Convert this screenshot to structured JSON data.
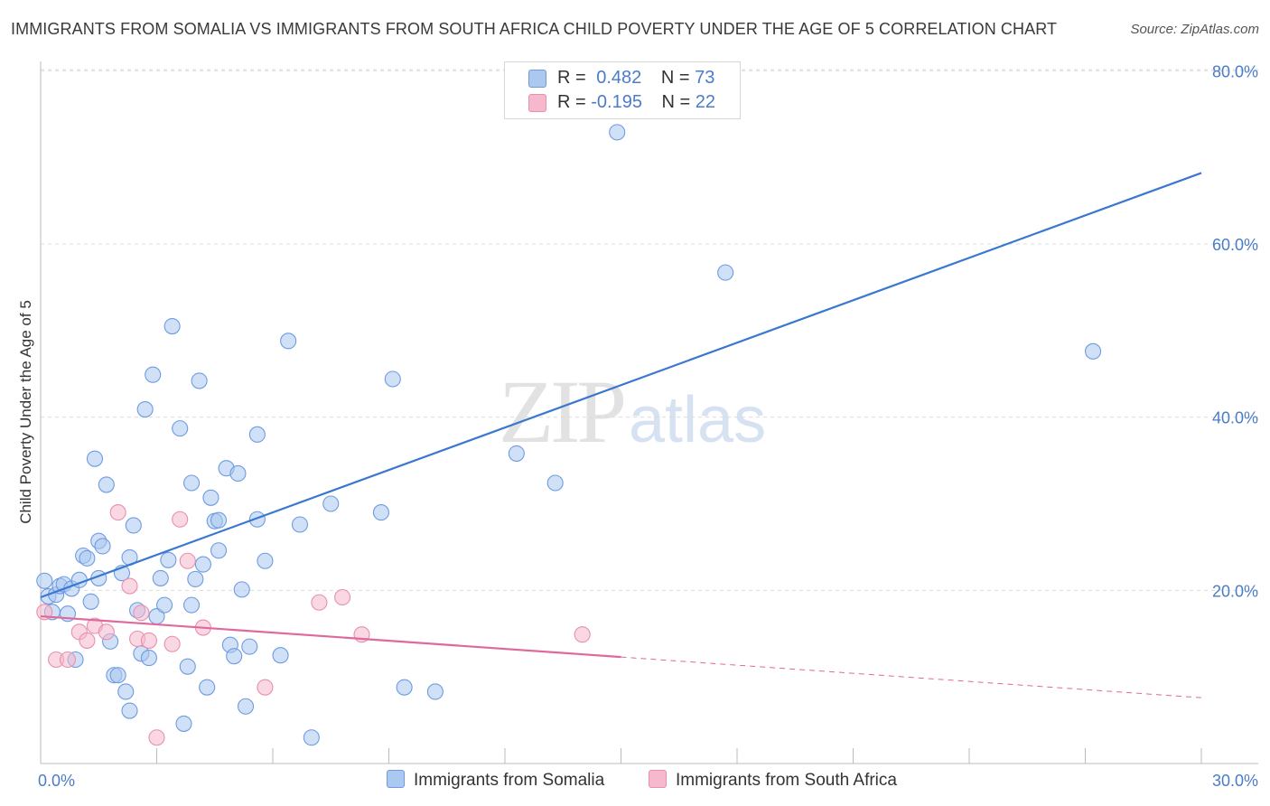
{
  "header": {
    "title": "IMMIGRANTS FROM SOMALIA VS IMMIGRANTS FROM SOUTH AFRICA CHILD POVERTY UNDER THE AGE OF 5 CORRELATION CHART",
    "source": "Source: ZipAtlas.com"
  },
  "watermark": {
    "zip": "ZIP",
    "atlas": "atlas"
  },
  "legend": {
    "rows": [
      {
        "r_label": "R = ",
        "r_value": "0.482",
        "n_label": "N = ",
        "n_value": "73",
        "color": "#aac8f0"
      },
      {
        "r_label": "R = ",
        "r_value": "-0.195",
        "n_label": "N = ",
        "n_value": "22",
        "color": "#f5b8cc"
      }
    ]
  },
  "chart_data": {
    "type": "scatter",
    "title": "IMMIGRANTS FROM SOMALIA VS IMMIGRANTS FROM SOUTH AFRICA CHILD POVERTY UNDER THE AGE OF 5 CORRELATION CHART",
    "xlabel": "",
    "ylabel": "Child Poverty Under the Age of 5",
    "xlim": [
      0,
      30
    ],
    "ylim": [
      0,
      83
    ],
    "x_tick_labels": [
      "0.0%",
      "30.0%"
    ],
    "y_ticks": [
      20,
      40,
      60,
      80
    ],
    "y_tick_labels": [
      "20.0%",
      "40.0%",
      "60.0%",
      "80.0%"
    ],
    "grid": true,
    "series": [
      {
        "name": "Immigrants from Somalia",
        "color": "#aac8f0",
        "stroke": "#6e9be0",
        "trend_color": "#3a78d0",
        "R": 0.482,
        "N": 73,
        "trend": {
          "x": [
            0,
            30
          ],
          "y": [
            19.2,
            68.2
          ]
        },
        "points": [
          [
            0.1,
            21.1
          ],
          [
            0.2,
            19.3
          ],
          [
            0.3,
            17.5
          ],
          [
            0.4,
            19.5
          ],
          [
            0.5,
            20.5
          ],
          [
            0.6,
            20.7
          ],
          [
            0.7,
            17.3
          ],
          [
            0.8,
            20.2
          ],
          [
            0.9,
            12.0
          ],
          [
            1.0,
            21.2
          ],
          [
            1.1,
            24.0
          ],
          [
            1.2,
            23.7
          ],
          [
            1.3,
            18.7
          ],
          [
            1.4,
            35.2
          ],
          [
            1.5,
            21.4
          ],
          [
            1.5,
            25.7
          ],
          [
            1.6,
            25.1
          ],
          [
            1.7,
            32.2
          ],
          [
            1.8,
            14.1
          ],
          [
            1.9,
            10.2
          ],
          [
            2.0,
            10.2
          ],
          [
            2.1,
            22.0
          ],
          [
            2.2,
            8.3
          ],
          [
            2.3,
            23.8
          ],
          [
            2.3,
            6.1
          ],
          [
            2.4,
            27.5
          ],
          [
            2.5,
            17.7
          ],
          [
            2.6,
            12.7
          ],
          [
            2.7,
            40.9
          ],
          [
            2.8,
            12.2
          ],
          [
            2.9,
            44.9
          ],
          [
            3.0,
            17.0
          ],
          [
            3.1,
            21.4
          ],
          [
            3.2,
            18.3
          ],
          [
            3.3,
            23.5
          ],
          [
            3.4,
            50.5
          ],
          [
            3.6,
            38.7
          ],
          [
            3.7,
            4.6
          ],
          [
            3.8,
            11.2
          ],
          [
            3.9,
            18.3
          ],
          [
            3.9,
            32.4
          ],
          [
            4.0,
            21.3
          ],
          [
            4.1,
            44.2
          ],
          [
            4.2,
            23.0
          ],
          [
            4.3,
            8.8
          ],
          [
            4.4,
            30.7
          ],
          [
            4.5,
            28.0
          ],
          [
            4.6,
            24.6
          ],
          [
            4.6,
            28.1
          ],
          [
            4.8,
            34.1
          ],
          [
            4.9,
            13.7
          ],
          [
            5.0,
            12.4
          ],
          [
            5.1,
            33.5
          ],
          [
            5.2,
            20.1
          ],
          [
            5.3,
            6.6
          ],
          [
            5.4,
            13.5
          ],
          [
            5.6,
            28.2
          ],
          [
            5.6,
            38.0
          ],
          [
            5.8,
            23.4
          ],
          [
            6.2,
            12.5
          ],
          [
            6.4,
            48.8
          ],
          [
            6.7,
            27.6
          ],
          [
            7.0,
            3.0
          ],
          [
            7.5,
            30.0
          ],
          [
            8.8,
            29.0
          ],
          [
            9.1,
            44.4
          ],
          [
            9.4,
            8.8
          ],
          [
            10.2,
            8.3
          ],
          [
            12.3,
            35.8
          ],
          [
            13.3,
            32.4
          ],
          [
            14.9,
            72.9
          ],
          [
            17.7,
            56.7
          ],
          [
            27.2,
            47.6
          ]
        ]
      },
      {
        "name": "Immigrants from South Africa",
        "color": "#f5b8cc",
        "stroke": "#e890ac",
        "trend_color": "#e0689a",
        "R": -0.195,
        "N": 22,
        "trend": {
          "x": [
            0,
            15
          ],
          "y": [
            17.0,
            12.3
          ],
          "dash_to": {
            "x": 30,
            "y": 7.6
          }
        },
        "points": [
          [
            0.1,
            17.5
          ],
          [
            0.4,
            12.0
          ],
          [
            0.7,
            12.0
          ],
          [
            1.0,
            15.2
          ],
          [
            1.2,
            14.2
          ],
          [
            1.4,
            15.9
          ],
          [
            1.7,
            15.2
          ],
          [
            2.0,
            29.0
          ],
          [
            2.3,
            20.5
          ],
          [
            2.5,
            14.4
          ],
          [
            2.6,
            17.4
          ],
          [
            2.8,
            14.2
          ],
          [
            3.0,
            3.0
          ],
          [
            3.4,
            13.8
          ],
          [
            3.6,
            28.2
          ],
          [
            3.8,
            23.4
          ],
          [
            4.2,
            15.7
          ],
          [
            5.8,
            8.8
          ],
          [
            7.2,
            18.6
          ],
          [
            7.8,
            19.2
          ],
          [
            8.3,
            14.9
          ],
          [
            14.0,
            14.9
          ]
        ]
      }
    ]
  },
  "bottom_legend": {
    "items": [
      {
        "label": "Immigrants from Somalia",
        "color": "#aac8f0"
      },
      {
        "label": "Immigrants from South Africa",
        "color": "#f5b8cc"
      }
    ]
  }
}
